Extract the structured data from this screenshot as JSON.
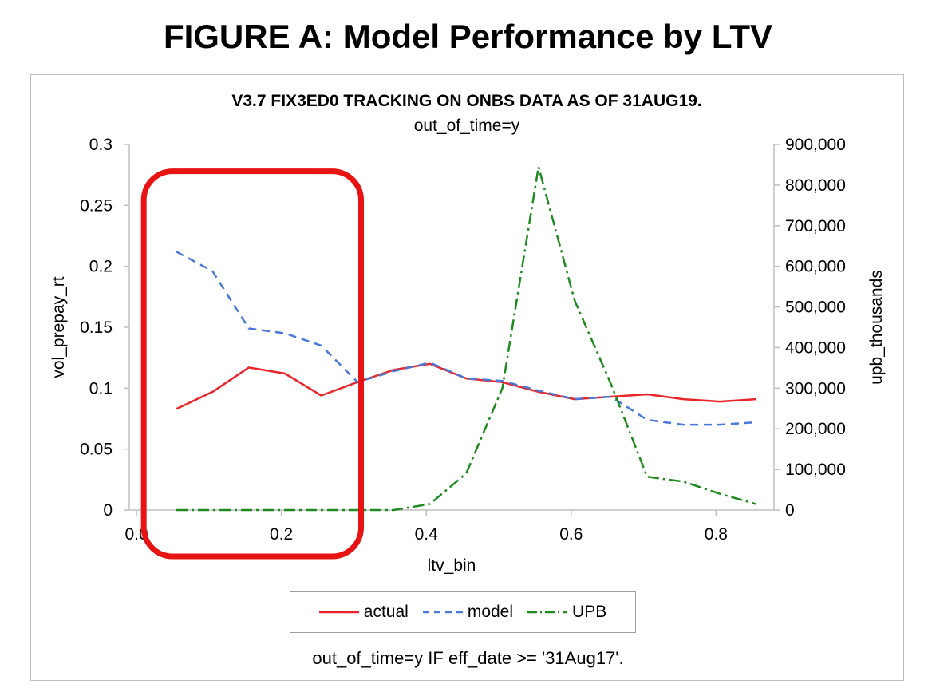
{
  "figure_title": "FIGURE A: Model Performance by LTV",
  "footnote": "out_of_time=y IF eff_date >= '31Aug17'.",
  "colors": {
    "actual": "#e8262a",
    "model": "#4a78d8",
    "upb": "#1f8a1f",
    "highlight": "#e81414"
  },
  "chart_data": {
    "type": "line",
    "title": "V3.7 FIX3ED0 TRACKING ON ONBS DATA AS OF 31AUG19.",
    "subtitle": "out_of_time=y",
    "xlabel": "ltv_bin",
    "ylabel": "vol_prepay_rt",
    "y2label": "upb_thousands",
    "xlim": [
      -0.01,
      0.88
    ],
    "ylim": [
      0,
      0.3
    ],
    "y2lim": [
      0,
      900000
    ],
    "x_ticks": [
      "0.0",
      "0.2",
      "0.4",
      "0.6",
      "0.8"
    ],
    "x_tick_values": [
      0.0,
      0.2,
      0.4,
      0.6,
      0.8
    ],
    "y_ticks": [
      "0",
      "0.05",
      "0.1",
      "0.15",
      "0.2",
      "0.25",
      "0.3"
    ],
    "y_tick_values": [
      0,
      0.05,
      0.1,
      0.15,
      0.2,
      0.25,
      0.3
    ],
    "y2_ticks": [
      "0",
      "100,000",
      "200,000",
      "300,000",
      "400,000",
      "500,000",
      "600,000",
      "700,000",
      "800,000",
      "900,000"
    ],
    "y2_tick_values": [
      0,
      100000,
      200000,
      300000,
      400000,
      500000,
      600000,
      700000,
      800000,
      900000
    ],
    "x": [
      0.055,
      0.105,
      0.155,
      0.205,
      0.255,
      0.305,
      0.355,
      0.405,
      0.455,
      0.505,
      0.555,
      0.605,
      0.655,
      0.705,
      0.755,
      0.805,
      0.855
    ],
    "series": [
      {
        "name": "actual",
        "axis": "left",
        "style": "solid",
        "values": [
          0.083,
          0.097,
          0.117,
          0.112,
          0.094,
          0.105,
          0.115,
          0.12,
          0.108,
          0.105,
          0.097,
          0.091,
          0.093,
          0.095,
          0.091,
          0.089,
          0.091
        ]
      },
      {
        "name": "model",
        "axis": "left",
        "style": "dashed",
        "values": [
          0.212,
          0.196,
          0.149,
          0.145,
          0.135,
          0.105,
          0.114,
          0.121,
          0.108,
          0.106,
          0.098,
          0.091,
          0.093,
          0.074,
          0.07,
          0.07,
          0.072
        ]
      },
      {
        "name": "UPB",
        "axis": "right",
        "style": "dashdot",
        "values": [
          0,
          0,
          0,
          0,
          0,
          0,
          0,
          15000,
          90000,
          300000,
          845000,
          515000,
          310000,
          82000,
          70000,
          40000,
          15000
        ]
      }
    ],
    "legend": {
      "position": "bottom",
      "entries": [
        "actual",
        "model",
        "UPB"
      ]
    },
    "annotation": {
      "type": "highlight-box",
      "x_range": [
        0.01,
        0.31
      ],
      "y_range": [
        -0.038,
        0.278
      ]
    }
  }
}
